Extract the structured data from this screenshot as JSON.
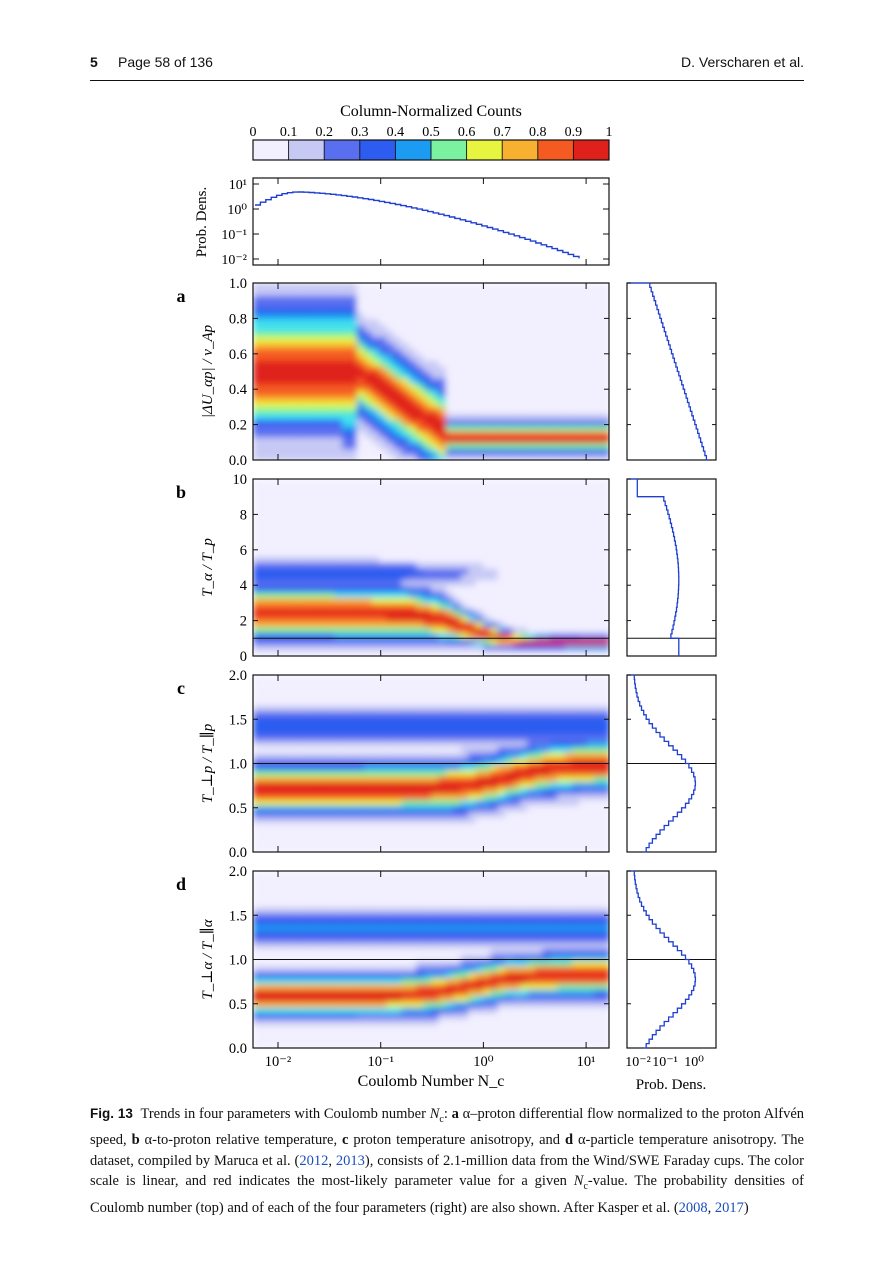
{
  "header": {
    "chapter_number": "5",
    "page_label": "Page 58 of 136",
    "authors": "D. Verscharen et al."
  },
  "figure": {
    "colorbar": {
      "title": "Column-Normalized Counts",
      "ticks": [
        "0",
        "0.1",
        "0.2",
        "0.3",
        "0.4",
        "0.5",
        "0.6",
        "0.7",
        "0.8",
        "0.9",
        "1"
      ]
    },
    "top_panel": {
      "ylabel": "Prob. Dens.",
      "yticks": [
        "10¹",
        "10⁰",
        "10⁻¹",
        "10⁻²"
      ]
    },
    "panels": [
      {
        "letter": "a",
        "ylabel": "|ΔU_αp| / v_Ap",
        "yticks": [
          "1.0",
          "0.8",
          "0.6",
          "0.4",
          "0.2",
          "0.0"
        ]
      },
      {
        "letter": "b",
        "ylabel": "T_α / T_p",
        "yticks": [
          "10",
          "8",
          "6",
          "4",
          "2",
          "0"
        ]
      },
      {
        "letter": "c",
        "ylabel": "T_⊥p / T_∥p",
        "yticks": [
          "2.0",
          "1.5",
          "1.0",
          "0.5",
          "0.0"
        ]
      },
      {
        "letter": "d",
        "ylabel": "T_⊥α / T_∥α",
        "yticks": [
          "2.0",
          "1.5",
          "1.0",
          "0.5",
          "0.0"
        ]
      }
    ],
    "xaxis": {
      "label": "Coulomb Number N_c",
      "ticks": [
        "10⁻²",
        "10⁻¹",
        "10⁰",
        "10¹"
      ]
    },
    "side_xaxis": {
      "label": "Prob. Dens.",
      "ticks": [
        "10⁻²",
        "10⁻¹",
        "10⁰"
      ]
    },
    "colors": {
      "colormap": [
        "#f2f0ff",
        "#c7c9f5",
        "#5a6ff0",
        "#2c5cf0",
        "#1c9bf2",
        "#3fe0f0",
        "#7af2a0",
        "#e8f540",
        "#f8b030",
        "#f55a20",
        "#e0201a"
      ],
      "line": "#1f3fd0"
    }
  },
  "caption": {
    "label": "Fig. 13",
    "part1": "Trends in four parameters with Coulomb number ",
    "nc": "N",
    "nc_sub": "c",
    "part2": ": ",
    "a_letter": "a",
    "a_text": " α–proton differential flow normalized to the proton Alfvén speed, ",
    "b_letter": "b",
    "b_text": " α-to-proton relative temperature, ",
    "c_letter": "c",
    "c_text": " proton temperature anisotropy, and ",
    "d_letter": "d",
    "d_text": " α-particle temperature anisotropy. The dataset, compiled by Maruca et al. (",
    "cite1": "2012",
    "sep1": ", ",
    "cite2": "2013",
    "part3": "), consists of 2.1-million data from the Wind/SWE Faraday cups. The color scale is linear, and red indicates the most-likely parameter value for a given ",
    "nc2": "N",
    "nc2_sub": "c",
    "part4": "-value. The probability densities of Coulomb number (top) and of each of the four parameters (right) are also shown. After Kasper et al. (",
    "cite3": "2008",
    "sep2": ", ",
    "cite4": "2017",
    "part5": ")"
  }
}
